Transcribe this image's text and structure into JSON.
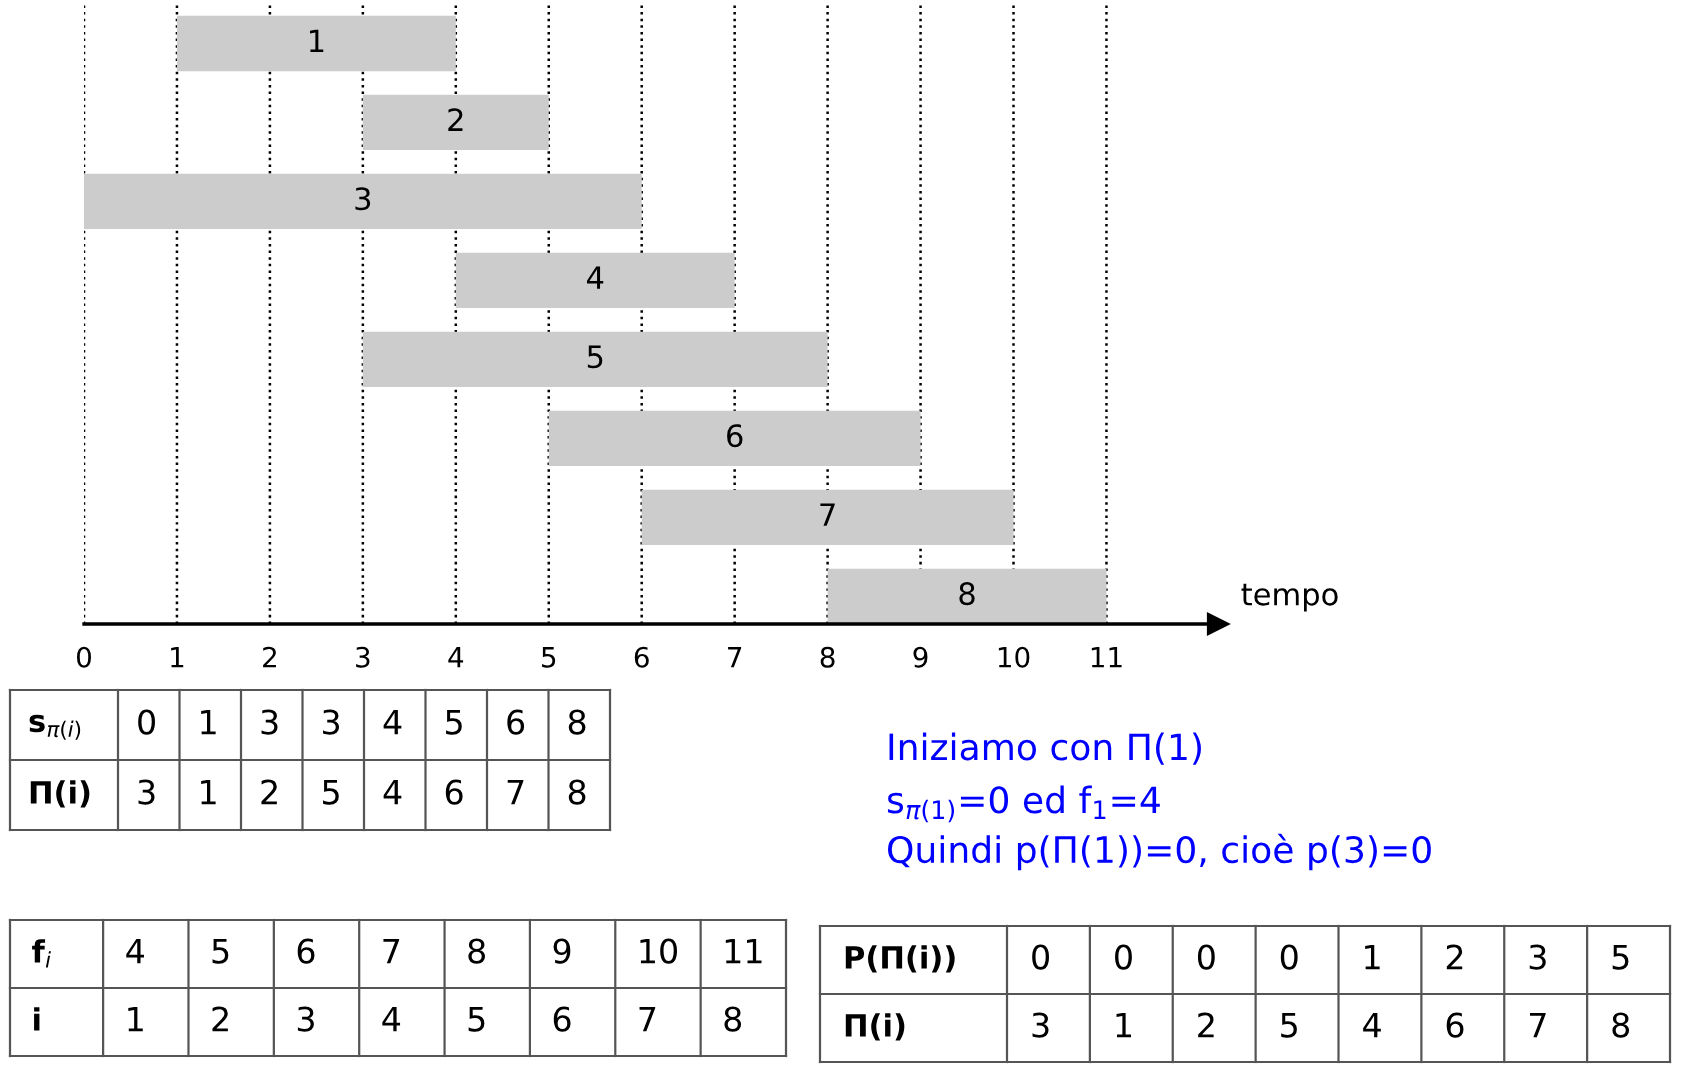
{
  "chart_data": {
    "type": "bar",
    "orientation": "horizontal",
    "categories": [
      null,
      null,
      null,
      null,
      null,
      null,
      null,
      null
    ],
    "base": [
      1,
      3,
      0,
      4,
      3,
      5,
      6,
      8
    ],
    "values": [
      3,
      2,
      6,
      3,
      5,
      4,
      4,
      3
    ],
    "color": "#cccccc",
    "xlim": [
      0,
      12.2
    ],
    "xticks": [
      0,
      1,
      2,
      3,
      4,
      5,
      6,
      7,
      8,
      9,
      10,
      11
    ],
    "xlabel": "tempo",
    "grid": "x",
    "tick_labels": "x",
    "annotations": [
      "s$_{π(i)}$ 0 1 3 3 4 5 6 8",
      "Π(i) 3 1 2 5 4 6 7 8",
      "f$_{i}$ 4 5 6 7 8 9 10 11",
      "i 1 2 3 4 5 6 7 8",
      "P(Π(i)) 0 0 0 0 1 2 3 5",
      "Π(i) 3 1 2 5 4 6 7 8",
      "Iniziamo con Π(1)",
      "s$_{π(1)}$=0 ed f$_{1}$=4",
      "Quindi p(Π(1))=0, cioè p(3)=0",
      "1",
      "2",
      "3",
      "4",
      "5",
      "6",
      "7",
      "8"
    ]
  }
}
